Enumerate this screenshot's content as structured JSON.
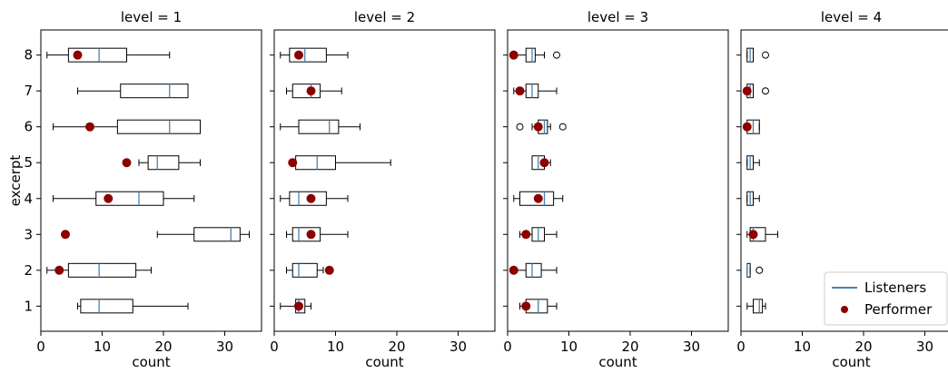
{
  "chart_data": {
    "type": "boxplot",
    "layout": "facets-1x4",
    "ylabel": "excerpt",
    "xlabel": "count",
    "xlim": [
      0,
      36
    ],
    "xticks": [
      0,
      10,
      20,
      30
    ],
    "categories": [
      1,
      2,
      3,
      4,
      5,
      6,
      7,
      8
    ],
    "legend": {
      "placement": "bottom-right of last panel",
      "entries": [
        {
          "label": "Listeners",
          "kind": "line",
          "color": "#4682b4"
        },
        {
          "label": "Performer",
          "kind": "dot",
          "color": "#8b0000"
        }
      ]
    },
    "colors": {
      "median": "#4682b4",
      "performer": "#8b0000",
      "box": "#000000"
    },
    "panels": [
      {
        "title": "level = 1",
        "boxes": [
          {
            "excerpt": 1,
            "whislo": 6,
            "q1": 6.5,
            "med": 9.5,
            "q3": 15,
            "whishi": 24,
            "fliers": [],
            "performer": null
          },
          {
            "excerpt": 2,
            "whislo": 1,
            "q1": 4.5,
            "med": 9.5,
            "q3": 15.5,
            "whishi": 18,
            "fliers": [],
            "performer": 3
          },
          {
            "excerpt": 3,
            "whislo": 19,
            "q1": 25,
            "med": 31,
            "q3": 32.5,
            "whishi": 34,
            "fliers": [],
            "performer": 4
          },
          {
            "excerpt": 4,
            "whislo": 2,
            "q1": 9,
            "med": 16,
            "q3": 20,
            "whishi": 25,
            "fliers": [],
            "performer": 11
          },
          {
            "excerpt": 5,
            "whislo": 16,
            "q1": 17.5,
            "med": 19,
            "q3": 22.5,
            "whishi": 26,
            "fliers": [],
            "performer": 14
          },
          {
            "excerpt": 6,
            "whislo": 2,
            "q1": 12.5,
            "med": 21,
            "q3": 26,
            "whishi": 26,
            "fliers": [],
            "performer": 8
          },
          {
            "excerpt": 7,
            "whislo": 6,
            "q1": 13,
            "med": 21,
            "q3": 24,
            "whishi": 24,
            "fliers": [],
            "performer": null
          },
          {
            "excerpt": 8,
            "whislo": 1,
            "q1": 4.5,
            "med": 9.5,
            "q3": 14,
            "whishi": 21,
            "fliers": [],
            "performer": 6
          }
        ]
      },
      {
        "title": "level = 2",
        "boxes": [
          {
            "excerpt": 1,
            "whislo": 1,
            "q1": 3.5,
            "med": 4,
            "q3": 5,
            "whishi": 6,
            "fliers": [],
            "performer": 4
          },
          {
            "excerpt": 2,
            "whislo": 2,
            "q1": 3,
            "med": 4,
            "q3": 7,
            "whishi": 8,
            "fliers": [],
            "performer": 9
          },
          {
            "excerpt": 3,
            "whislo": 2,
            "q1": 3,
            "med": 4,
            "q3": 7.5,
            "whishi": 12,
            "fliers": [],
            "performer": 6
          },
          {
            "excerpt": 4,
            "whislo": 1,
            "q1": 2.5,
            "med": 4,
            "q3": 8.5,
            "whishi": 12,
            "fliers": [],
            "performer": 6
          },
          {
            "excerpt": 5,
            "whislo": 3,
            "q1": 3.5,
            "med": 7,
            "q3": 10,
            "whishi": 19,
            "fliers": [],
            "performer": 3
          },
          {
            "excerpt": 6,
            "whislo": 1,
            "q1": 4,
            "med": 9,
            "q3": 10.5,
            "whishi": 14,
            "fliers": [],
            "performer": null
          },
          {
            "excerpt": 7,
            "whislo": 2,
            "q1": 3,
            "med": 6,
            "q3": 7.5,
            "whishi": 11,
            "fliers": [],
            "performer": 6
          },
          {
            "excerpt": 8,
            "whislo": 1,
            "q1": 2.5,
            "med": 5,
            "q3": 8.5,
            "whishi": 12,
            "fliers": [],
            "performer": 4
          }
        ]
      },
      {
        "title": "level = 3",
        "boxes": [
          {
            "excerpt": 1,
            "whislo": 2,
            "q1": 3,
            "med": 5,
            "q3": 6.5,
            "whishi": 8,
            "fliers": [],
            "performer": 3
          },
          {
            "excerpt": 2,
            "whislo": 1,
            "q1": 3,
            "med": 4,
            "q3": 5.5,
            "whishi": 8,
            "fliers": [],
            "performer": 1
          },
          {
            "excerpt": 3,
            "whislo": 2,
            "q1": 4,
            "med": 5,
            "q3": 6,
            "whishi": 8,
            "fliers": [],
            "performer": 3
          },
          {
            "excerpt": 4,
            "whislo": 1,
            "q1": 2,
            "med": 6,
            "q3": 7.5,
            "whishi": 9,
            "fliers": [],
            "performer": 5
          },
          {
            "excerpt": 5,
            "whislo": 4,
            "q1": 4,
            "med": 5,
            "q3": 6,
            "whishi": 7,
            "fliers": [],
            "performer": 6
          },
          {
            "excerpt": 6,
            "whislo": 4,
            "q1": 5,
            "med": 6,
            "q3": 6.5,
            "whishi": 7,
            "fliers": [
              2,
              9
            ],
            "performer": 5
          },
          {
            "excerpt": 7,
            "whislo": 1,
            "q1": 3,
            "med": 4,
            "q3": 5,
            "whishi": 8,
            "fliers": [],
            "performer": 2
          },
          {
            "excerpt": 8,
            "whislo": 1,
            "q1": 3,
            "med": 4,
            "q3": 4.5,
            "whishi": 6,
            "fliers": [
              8
            ],
            "performer": 1
          }
        ]
      },
      {
        "title": "level = 4",
        "boxes": [
          {
            "excerpt": 1,
            "whislo": 1,
            "q1": 2,
            "med": 3,
            "q3": 3.5,
            "whishi": 4,
            "fliers": [],
            "performer": null
          },
          {
            "excerpt": 2,
            "whislo": 1,
            "q1": 1,
            "med": 1,
            "q3": 1.5,
            "whishi": 1.5,
            "fliers": [
              3
            ],
            "performer": null
          },
          {
            "excerpt": 3,
            "whislo": 1,
            "q1": 1.5,
            "med": 2,
            "q3": 4,
            "whishi": 6,
            "fliers": [],
            "performer": 2
          },
          {
            "excerpt": 4,
            "whislo": 1,
            "q1": 1,
            "med": 1.5,
            "q3": 2,
            "whishi": 3,
            "fliers": [],
            "performer": null
          },
          {
            "excerpt": 5,
            "whislo": 1,
            "q1": 1,
            "med": 1.5,
            "q3": 2,
            "whishi": 3,
            "fliers": [],
            "performer": null
          },
          {
            "excerpt": 6,
            "whislo": 1,
            "q1": 1,
            "med": 2,
            "q3": 3,
            "whishi": 3,
            "fliers": [],
            "performer": 1
          },
          {
            "excerpt": 7,
            "whislo": 1,
            "q1": 1,
            "med": 1.5,
            "q3": 2,
            "whishi": 2,
            "fliers": [
              4
            ],
            "performer": 1
          },
          {
            "excerpt": 8,
            "whislo": 1,
            "q1": 1,
            "med": 1.5,
            "q3": 2,
            "whishi": 2,
            "fliers": [
              4
            ],
            "performer": null
          }
        ]
      }
    ]
  }
}
